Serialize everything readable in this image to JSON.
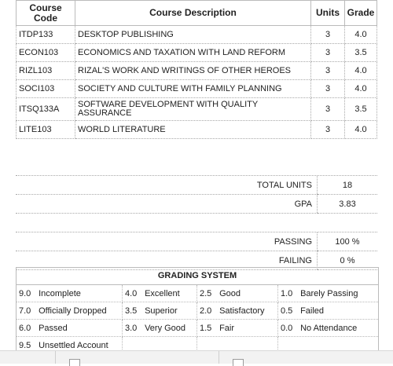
{
  "headers": {
    "course_code": "Course Code",
    "course_description": "Course Description",
    "units": "Units",
    "grade": "Grade"
  },
  "courses": [
    {
      "code": "ITDP133",
      "description": "DESKTOP PUBLISHING",
      "units": "3",
      "grade": "4.0"
    },
    {
      "code": "ECON103",
      "description": "ECONOMICS AND TAXATION WITH LAND REFORM",
      "units": "3",
      "grade": "3.5"
    },
    {
      "code": "RIZL103",
      "description": "RIZAL'S WORK AND WRITINGS OF OTHER HEROES",
      "units": "3",
      "grade": "4.0"
    },
    {
      "code": "SOCI103",
      "description": "SOCIETY AND CULTURE WITH FAMILY PLANNING",
      "units": "3",
      "grade": "4.0"
    },
    {
      "code": "ITSQ133A",
      "description": "SOFTWARE DEVELOPMENT WITH QUALITY ASSURANCE",
      "units": "3",
      "grade": "3.5"
    },
    {
      "code": "LITE103",
      "description": "WORLD LITERATURE",
      "units": "3",
      "grade": "4.0"
    }
  ],
  "summary": {
    "total_units_label": "TOTAL UNITS",
    "total_units_value": "18",
    "gpa_label": "GPA",
    "gpa_value": "3.83",
    "passing_label": "PASSING",
    "passing_value": "100 %",
    "failing_label": "FAILING",
    "failing_value": "0 %"
  },
  "grading_system": {
    "title": "GRADING SYSTEM",
    "rows": [
      [
        {
          "g": "9.0",
          "d": "Incomplete"
        },
        {
          "g": "4.0",
          "d": "Excellent"
        },
        {
          "g": "2.5",
          "d": "Good"
        },
        {
          "g": "1.0",
          "d": "Barely Passing"
        }
      ],
      [
        {
          "g": "7.0",
          "d": "Officially Dropped"
        },
        {
          "g": "3.5",
          "d": "Superior"
        },
        {
          "g": "2.0",
          "d": "Satisfactory"
        },
        {
          "g": "0.5",
          "d": "Failed"
        }
      ],
      [
        {
          "g": "6.0",
          "d": "Passed"
        },
        {
          "g": "3.0",
          "d": "Very Good"
        },
        {
          "g": "1.5",
          "d": "Fair"
        },
        {
          "g": "0.0",
          "d": "No Attendance"
        }
      ],
      [
        {
          "g": "9.5",
          "d": "Unsettled Account"
        },
        {
          "g": "",
          "d": ""
        },
        {
          "g": "",
          "d": ""
        },
        {
          "g": "",
          "d": ""
        }
      ]
    ]
  }
}
